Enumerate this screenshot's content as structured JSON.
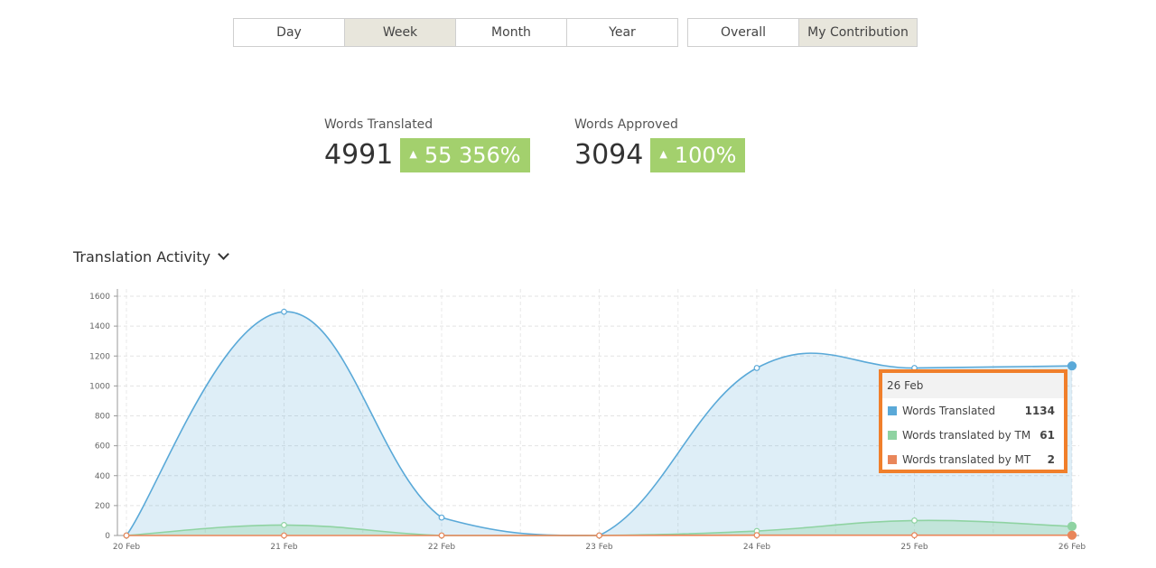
{
  "period_tabs": [
    {
      "label": "Day",
      "active": false
    },
    {
      "label": "Week",
      "active": true
    },
    {
      "label": "Month",
      "active": false
    },
    {
      "label": "Year",
      "active": false
    }
  ],
  "scope_tabs": [
    {
      "label": "Overall",
      "active": false
    },
    {
      "label": "My Contribution",
      "active": true
    }
  ],
  "stats": {
    "words_translated": {
      "label": "Words Translated",
      "value": "4991",
      "change": "55 356%"
    },
    "words_approved": {
      "label": "Words Approved",
      "value": "3094",
      "change": "100%"
    }
  },
  "section": {
    "title": "Translation Activity",
    "chevron_icon": "chevron-down-icon"
  },
  "colors": {
    "translated": "#5aa9d8",
    "tm": "#8fd3a2",
    "mt": "#e9865a",
    "badge": "#a3d06d",
    "tooltip_border": "#f07f2b"
  },
  "chart_data": {
    "type": "area",
    "categories": [
      "20 Feb",
      "21 Feb",
      "22 Feb",
      "23 Feb",
      "24 Feb",
      "25 Feb",
      "26 Feb"
    ],
    "ylim": [
      0,
      1600
    ],
    "yticks": [
      0,
      200,
      400,
      600,
      800,
      1000,
      1200,
      1400,
      1600
    ],
    "grid": true,
    "series": [
      {
        "name": "Words Translated",
        "values": [
          0,
          1496,
          120,
          0,
          1120,
          1120,
          1134
        ]
      },
      {
        "name": "Words translated by TM",
        "values": [
          0,
          70,
          0,
          0,
          30,
          100,
          61
        ]
      },
      {
        "name": "Words translated by MT",
        "values": [
          0,
          0,
          0,
          0,
          2,
          2,
          2
        ]
      }
    ]
  },
  "tooltip": {
    "title": "26 Feb",
    "rows": [
      {
        "name": "Words Translated",
        "value": "1134"
      },
      {
        "name": "Words translated by TM",
        "value": "61"
      },
      {
        "name": "Words translated by MT",
        "value": "2"
      }
    ]
  }
}
